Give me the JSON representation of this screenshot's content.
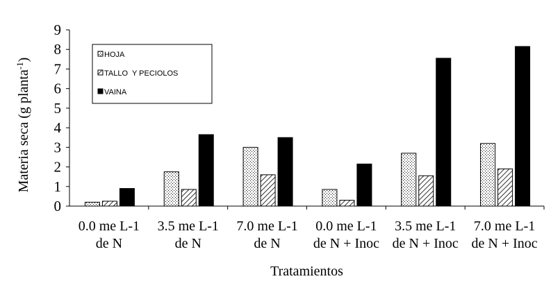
{
  "chart_data": {
    "type": "bar",
    "categories": [
      [
        "0.0 me L-1",
        "de N"
      ],
      [
        "3.5 me L-1",
        "de N"
      ],
      [
        "7.0 me L-1",
        "de N"
      ],
      [
        "0.0 me L-1",
        "de N + Inoc"
      ],
      [
        "3.5 me L-1",
        "de N + Inoc"
      ],
      [
        "7.0 me L-1",
        "de N + Inoc"
      ]
    ],
    "series": [
      {
        "name": "HOJA",
        "pattern": "dots",
        "values": [
          0.2,
          1.75,
          3.0,
          0.85,
          2.7,
          3.2
        ]
      },
      {
        "name": "TALLO  Y PECIOLOS",
        "pattern": "hatch",
        "values": [
          0.25,
          0.85,
          1.6,
          0.3,
          1.55,
          1.9
        ]
      },
      {
        "name": "VAINA",
        "pattern": "solid",
        "values": [
          0.9,
          3.65,
          3.5,
          2.15,
          7.55,
          8.15
        ]
      }
    ],
    "xlabel": "Tratamientos",
    "ylabel": "Materia seca (g planta",
    "ylabel_sup": "-1",
    "ylabel_end": ")",
    "ylim": [
      0,
      9
    ],
    "yticks": [
      0,
      1,
      2,
      3,
      4,
      5,
      6,
      7,
      8,
      9
    ],
    "grid": false,
    "legend_position": "top-left",
    "colors": {
      "axis": "#000000",
      "bar_fill": "#000000",
      "background": "#ffffff"
    }
  }
}
